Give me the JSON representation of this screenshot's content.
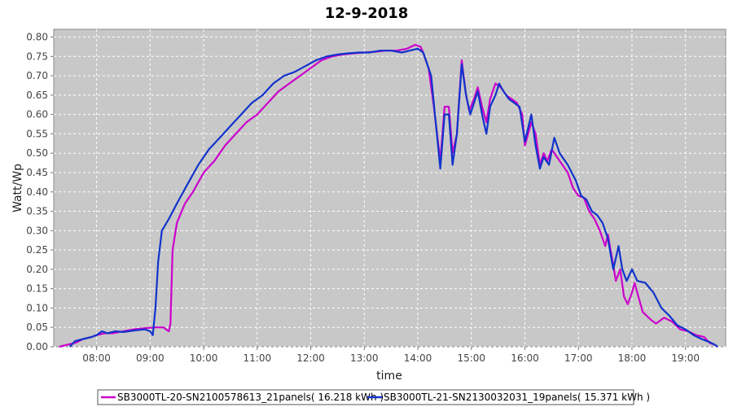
{
  "chart_data": {
    "type": "line",
    "title": "12-9-2018",
    "xlabel": "time",
    "ylabel": "Watt/Wp",
    "xlim": [
      7.2,
      19.75
    ],
    "ylim": [
      0,
      0.82
    ],
    "x_ticks": [
      "08:00",
      "09:00",
      "10:00",
      "11:00",
      "12:00",
      "13:00",
      "14:00",
      "15:00",
      "16:00",
      "17:00",
      "18:00",
      "19:00"
    ],
    "x_tick_values": [
      8,
      9,
      10,
      11,
      12,
      13,
      14,
      15,
      16,
      17,
      18,
      19
    ],
    "y_ticks": [
      "0.00",
      "0.05",
      "0.10",
      "0.15",
      "0.20",
      "0.25",
      "0.30",
      "0.35",
      "0.40",
      "0.45",
      "0.50",
      "0.55",
      "0.60",
      "0.65",
      "0.70",
      "0.75",
      "0.80"
    ],
    "y_tick_values": [
      0,
      0.05,
      0.1,
      0.15,
      0.2,
      0.25,
      0.3,
      0.35,
      0.4,
      0.45,
      0.5,
      0.55,
      0.6,
      0.65,
      0.7,
      0.75,
      0.8
    ],
    "grid": true,
    "legend_position": "bottom",
    "series": [
      {
        "name": "SB3000TL-20-SN2100578613_21panels( 16.218 kWh )",
        "color": "#cc00cc",
        "points": [
          [
            7.3,
            0
          ],
          [
            7.45,
            0.005
          ],
          [
            7.6,
            0.01
          ],
          [
            7.75,
            0.02
          ],
          [
            7.9,
            0.025
          ],
          [
            8.0,
            0.03
          ],
          [
            8.15,
            0.035
          ],
          [
            8.3,
            0.035
          ],
          [
            8.5,
            0.04
          ],
          [
            8.7,
            0.045
          ],
          [
            8.9,
            0.048
          ],
          [
            9.1,
            0.05
          ],
          [
            9.25,
            0.05
          ],
          [
            9.3,
            0.045
          ],
          [
            9.35,
            0.04
          ],
          [
            9.38,
            0.06
          ],
          [
            9.42,
            0.25
          ],
          [
            9.5,
            0.32
          ],
          [
            9.65,
            0.37
          ],
          [
            9.8,
            0.4
          ],
          [
            10.0,
            0.45
          ],
          [
            10.2,
            0.48
          ],
          [
            10.4,
            0.52
          ],
          [
            10.6,
            0.55
          ],
          [
            10.8,
            0.58
          ],
          [
            11.0,
            0.6
          ],
          [
            11.2,
            0.63
          ],
          [
            11.4,
            0.66
          ],
          [
            11.6,
            0.68
          ],
          [
            11.8,
            0.7
          ],
          [
            12.0,
            0.72
          ],
          [
            12.2,
            0.74
          ],
          [
            12.4,
            0.75
          ],
          [
            12.6,
            0.755
          ],
          [
            12.8,
            0.758
          ],
          [
            13.0,
            0.76
          ],
          [
            13.2,
            0.762
          ],
          [
            13.4,
            0.765
          ],
          [
            13.6,
            0.765
          ],
          [
            13.8,
            0.77
          ],
          [
            13.95,
            0.78
          ],
          [
            14.05,
            0.775
          ],
          [
            14.1,
            0.76
          ],
          [
            14.2,
            0.72
          ],
          [
            14.3,
            0.62
          ],
          [
            14.42,
            0.48
          ],
          [
            14.5,
            0.62
          ],
          [
            14.58,
            0.62
          ],
          [
            14.65,
            0.5
          ],
          [
            14.73,
            0.55
          ],
          [
            14.82,
            0.74
          ],
          [
            14.9,
            0.65
          ],
          [
            14.96,
            0.61
          ],
          [
            15.05,
            0.64
          ],
          [
            15.12,
            0.67
          ],
          [
            15.2,
            0.62
          ],
          [
            15.28,
            0.58
          ],
          [
            15.35,
            0.64
          ],
          [
            15.45,
            0.68
          ],
          [
            15.55,
            0.67
          ],
          [
            15.65,
            0.65
          ],
          [
            15.75,
            0.64
          ],
          [
            15.85,
            0.63
          ],
          [
            15.95,
            0.6
          ],
          [
            16.0,
            0.52
          ],
          [
            16.12,
            0.58
          ],
          [
            16.2,
            0.55
          ],
          [
            16.28,
            0.47
          ],
          [
            16.35,
            0.5
          ],
          [
            16.42,
            0.48
          ],
          [
            16.5,
            0.51
          ],
          [
            16.6,
            0.49
          ],
          [
            16.7,
            0.47
          ],
          [
            16.8,
            0.45
          ],
          [
            16.9,
            0.41
          ],
          [
            17.0,
            0.39
          ],
          [
            17.1,
            0.385
          ],
          [
            17.2,
            0.35
          ],
          [
            17.3,
            0.33
          ],
          [
            17.4,
            0.3
          ],
          [
            17.5,
            0.26
          ],
          [
            17.55,
            0.29
          ],
          [
            17.65,
            0.21
          ],
          [
            17.7,
            0.17
          ],
          [
            17.78,
            0.2
          ],
          [
            17.85,
            0.13
          ],
          [
            17.92,
            0.11
          ],
          [
            18.0,
            0.14
          ],
          [
            18.05,
            0.165
          ],
          [
            18.12,
            0.13
          ],
          [
            18.2,
            0.09
          ],
          [
            18.35,
            0.07
          ],
          [
            18.45,
            0.06
          ],
          [
            18.6,
            0.075
          ],
          [
            18.75,
            0.065
          ],
          [
            18.9,
            0.045
          ],
          [
            19.05,
            0.04
          ],
          [
            19.2,
            0.03
          ],
          [
            19.35,
            0.025
          ],
          [
            19.45,
            0.01
          ],
          [
            19.55,
            0.005
          ],
          [
            19.6,
            0
          ]
        ]
      },
      {
        "name": "SB3000TL-21-SN2130032031_19panels( 15.371 kWh )",
        "color": "#1133cc",
        "points": [
          [
            7.5,
            0
          ],
          [
            7.6,
            0.015
          ],
          [
            7.75,
            0.02
          ],
          [
            7.9,
            0.025
          ],
          [
            8.0,
            0.03
          ],
          [
            8.1,
            0.04
          ],
          [
            8.2,
            0.035
          ],
          [
            8.35,
            0.04
          ],
          [
            8.5,
            0.038
          ],
          [
            8.7,
            0.042
          ],
          [
            8.9,
            0.045
          ],
          [
            9.0,
            0.04
          ],
          [
            9.05,
            0.03
          ],
          [
            9.1,
            0.1
          ],
          [
            9.15,
            0.22
          ],
          [
            9.22,
            0.3
          ],
          [
            9.35,
            0.33
          ],
          [
            9.5,
            0.37
          ],
          [
            9.7,
            0.42
          ],
          [
            9.9,
            0.47
          ],
          [
            10.1,
            0.51
          ],
          [
            10.3,
            0.54
          ],
          [
            10.5,
            0.57
          ],
          [
            10.7,
            0.6
          ],
          [
            10.9,
            0.63
          ],
          [
            11.1,
            0.65
          ],
          [
            11.3,
            0.68
          ],
          [
            11.5,
            0.7
          ],
          [
            11.7,
            0.71
          ],
          [
            11.9,
            0.725
          ],
          [
            12.1,
            0.74
          ],
          [
            12.3,
            0.75
          ],
          [
            12.5,
            0.755
          ],
          [
            12.7,
            0.758
          ],
          [
            12.9,
            0.76
          ],
          [
            13.1,
            0.76
          ],
          [
            13.3,
            0.765
          ],
          [
            13.5,
            0.765
          ],
          [
            13.7,
            0.76
          ],
          [
            13.85,
            0.765
          ],
          [
            14.0,
            0.77
          ],
          [
            14.1,
            0.76
          ],
          [
            14.15,
            0.74
          ],
          [
            14.25,
            0.7
          ],
          [
            14.32,
            0.6
          ],
          [
            14.42,
            0.46
          ],
          [
            14.5,
            0.6
          ],
          [
            14.58,
            0.6
          ],
          [
            14.65,
            0.47
          ],
          [
            14.73,
            0.55
          ],
          [
            14.82,
            0.73
          ],
          [
            14.9,
            0.65
          ],
          [
            14.98,
            0.6
          ],
          [
            15.05,
            0.63
          ],
          [
            15.12,
            0.66
          ],
          [
            15.2,
            0.6
          ],
          [
            15.28,
            0.55
          ],
          [
            15.35,
            0.62
          ],
          [
            15.45,
            0.65
          ],
          [
            15.52,
            0.68
          ],
          [
            15.6,
            0.66
          ],
          [
            15.7,
            0.64
          ],
          [
            15.8,
            0.63
          ],
          [
            15.9,
            0.62
          ],
          [
            16.0,
            0.53
          ],
          [
            16.12,
            0.6
          ],
          [
            16.2,
            0.52
          ],
          [
            16.28,
            0.46
          ],
          [
            16.35,
            0.49
          ],
          [
            16.45,
            0.47
          ],
          [
            16.55,
            0.54
          ],
          [
            16.65,
            0.5
          ],
          [
            16.8,
            0.47
          ],
          [
            16.95,
            0.43
          ],
          [
            17.05,
            0.39
          ],
          [
            17.15,
            0.38
          ],
          [
            17.25,
            0.35
          ],
          [
            17.35,
            0.34
          ],
          [
            17.45,
            0.32
          ],
          [
            17.55,
            0.28
          ],
          [
            17.65,
            0.2
          ],
          [
            17.75,
            0.26
          ],
          [
            17.82,
            0.2
          ],
          [
            17.9,
            0.17
          ],
          [
            18.0,
            0.2
          ],
          [
            18.1,
            0.17
          ],
          [
            18.25,
            0.165
          ],
          [
            18.4,
            0.14
          ],
          [
            18.55,
            0.1
          ],
          [
            18.7,
            0.08
          ],
          [
            18.85,
            0.055
          ],
          [
            19.0,
            0.045
          ],
          [
            19.15,
            0.03
          ],
          [
            19.3,
            0.02
          ],
          [
            19.45,
            0.012
          ],
          [
            19.55,
            0.005
          ],
          [
            19.6,
            0
          ]
        ]
      }
    ]
  }
}
